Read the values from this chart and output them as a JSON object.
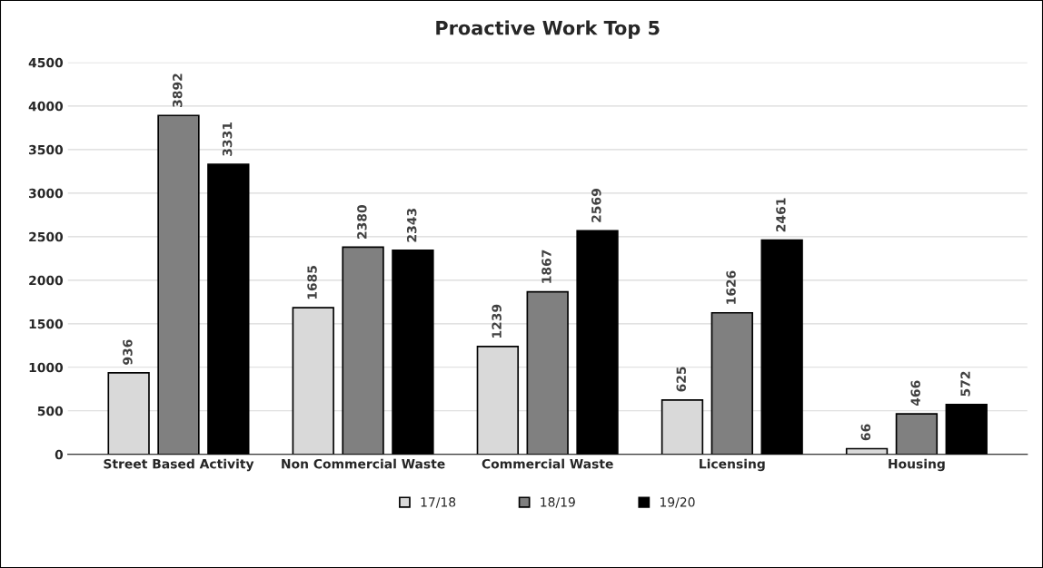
{
  "chart_data": {
    "type": "bar",
    "title": "Proactive Work Top 5",
    "categories": [
      "Street Based Activity",
      "Non Commercial Waste",
      "Commercial Waste",
      "Licensing",
      "Housing"
    ],
    "series": [
      {
        "name": "17/18",
        "color": "#d9d9d9",
        "values": [
          936,
          1685,
          1239,
          625,
          66
        ]
      },
      {
        "name": "18/19",
        "color": "#808080",
        "values": [
          3892,
          2380,
          1867,
          1626,
          466
        ]
      },
      {
        "name": "19/20",
        "color": "#000000",
        "values": [
          3331,
          2343,
          2569,
          2461,
          572
        ]
      }
    ],
    "ylim": [
      0,
      4500
    ],
    "yticks": [
      0,
      500,
      1000,
      1500,
      2000,
      2500,
      3000,
      3500,
      4000,
      4500
    ],
    "grid": "y",
    "legend": "bottom",
    "data_labels": true
  }
}
